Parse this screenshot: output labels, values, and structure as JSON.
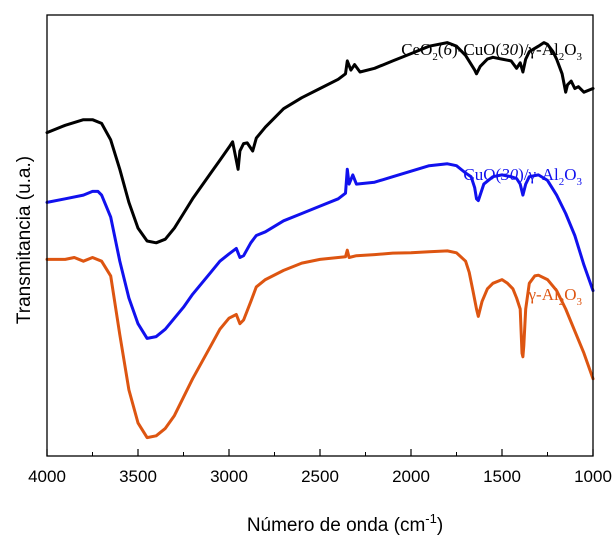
{
  "chart_data": {
    "type": "line",
    "title": "",
    "xlabel": "Número de onda (cm",
    "xlabel_sup": "-1",
    "xlabel_close": ")",
    "ylabel": "Transmitancia (u.a.)",
    "xlim": [
      4000,
      1000
    ],
    "x_reversed": true,
    "xticks": [
      "4000",
      "3500",
      "3000",
      "2500",
      "2000",
      "1500",
      "1000"
    ],
    "grid": false,
    "legend": "none",
    "series": [
      {
        "name": "CeO2(6)-CuO(30)/γ-Al2O3",
        "color": "#000000",
        "points": [
          [
            4000,
            0.7
          ],
          [
            3900,
            0.72
          ],
          [
            3800,
            0.735
          ],
          [
            3750,
            0.735
          ],
          [
            3700,
            0.725
          ],
          [
            3650,
            0.68
          ],
          [
            3600,
            0.6
          ],
          [
            3550,
            0.51
          ],
          [
            3500,
            0.44
          ],
          [
            3450,
            0.405
          ],
          [
            3400,
            0.4
          ],
          [
            3350,
            0.41
          ],
          [
            3300,
            0.44
          ],
          [
            3250,
            0.48
          ],
          [
            3200,
            0.52
          ],
          [
            3100,
            0.59
          ],
          [
            3050,
            0.625
          ],
          [
            3000,
            0.66
          ],
          [
            2980,
            0.675
          ],
          [
            2960,
            0.625
          ],
          [
            2950,
            0.6
          ],
          [
            2940,
            0.65
          ],
          [
            2920,
            0.67
          ],
          [
            2900,
            0.672
          ],
          [
            2870,
            0.65
          ],
          [
            2850,
            0.685
          ],
          [
            2800,
            0.715
          ],
          [
            2700,
            0.765
          ],
          [
            2600,
            0.795
          ],
          [
            2500,
            0.82
          ],
          [
            2400,
            0.845
          ],
          [
            2360,
            0.86
          ],
          [
            2350,
            0.895
          ],
          [
            2330,
            0.87
          ],
          [
            2310,
            0.885
          ],
          [
            2280,
            0.865
          ],
          [
            2200,
            0.875
          ],
          [
            2100,
            0.895
          ],
          [
            2000,
            0.915
          ],
          [
            1900,
            0.935
          ],
          [
            1800,
            0.945
          ],
          [
            1750,
            0.935
          ],
          [
            1700,
            0.91
          ],
          [
            1650,
            0.87
          ],
          [
            1640,
            0.86
          ],
          [
            1620,
            0.88
          ],
          [
            1580,
            0.9
          ],
          [
            1550,
            0.905
          ],
          [
            1500,
            0.9
          ],
          [
            1450,
            0.895
          ],
          [
            1420,
            0.875
          ],
          [
            1400,
            0.89
          ],
          [
            1385,
            0.865
          ],
          [
            1370,
            0.9
          ],
          [
            1350,
            0.92
          ],
          [
            1300,
            0.935
          ],
          [
            1270,
            0.945
          ],
          [
            1250,
            0.94
          ],
          [
            1220,
            0.92
          ],
          [
            1200,
            0.9
          ],
          [
            1170,
            0.86
          ],
          [
            1150,
            0.81
          ],
          [
            1140,
            0.83
          ],
          [
            1120,
            0.84
          ],
          [
            1100,
            0.82
          ],
          [
            1080,
            0.825
          ],
          [
            1050,
            0.81
          ],
          [
            1000,
            0.82
          ]
        ]
      },
      {
        "name": "CuO(30)/γ-Al2O3",
        "color": "#1111ee",
        "points": [
          [
            4000,
            0.51
          ],
          [
            3900,
            0.52
          ],
          [
            3800,
            0.53
          ],
          [
            3750,
            0.54
          ],
          [
            3720,
            0.54
          ],
          [
            3700,
            0.53
          ],
          [
            3650,
            0.47
          ],
          [
            3600,
            0.35
          ],
          [
            3550,
            0.25
          ],
          [
            3500,
            0.18
          ],
          [
            3450,
            0.14
          ],
          [
            3400,
            0.145
          ],
          [
            3350,
            0.165
          ],
          [
            3300,
            0.195
          ],
          [
            3250,
            0.225
          ],
          [
            3200,
            0.26
          ],
          [
            3100,
            0.32
          ],
          [
            3050,
            0.35
          ],
          [
            3000,
            0.37
          ],
          [
            2960,
            0.385
          ],
          [
            2940,
            0.36
          ],
          [
            2920,
            0.365
          ],
          [
            2880,
            0.4
          ],
          [
            2850,
            0.42
          ],
          [
            2800,
            0.43
          ],
          [
            2700,
            0.46
          ],
          [
            2600,
            0.48
          ],
          [
            2500,
            0.5
          ],
          [
            2400,
            0.52
          ],
          [
            2360,
            0.535
          ],
          [
            2350,
            0.6
          ],
          [
            2340,
            0.56
          ],
          [
            2320,
            0.585
          ],
          [
            2300,
            0.56
          ],
          [
            2200,
            0.565
          ],
          [
            2100,
            0.58
          ],
          [
            2000,
            0.595
          ],
          [
            1900,
            0.61
          ],
          [
            1800,
            0.615
          ],
          [
            1750,
            0.61
          ],
          [
            1700,
            0.59
          ],
          [
            1670,
            0.58
          ],
          [
            1650,
            0.55
          ],
          [
            1640,
            0.52
          ],
          [
            1630,
            0.515
          ],
          [
            1600,
            0.56
          ],
          [
            1550,
            0.58
          ],
          [
            1500,
            0.585
          ],
          [
            1450,
            0.58
          ],
          [
            1420,
            0.575
          ],
          [
            1400,
            0.56
          ],
          [
            1385,
            0.53
          ],
          [
            1370,
            0.56
          ],
          [
            1350,
            0.58
          ],
          [
            1300,
            0.585
          ],
          [
            1250,
            0.57
          ],
          [
            1200,
            0.53
          ],
          [
            1150,
            0.48
          ],
          [
            1100,
            0.42
          ],
          [
            1050,
            0.34
          ],
          [
            1000,
            0.27
          ]
        ]
      },
      {
        "name": "γ-Al2O3",
        "color": "#dd5511",
        "points": [
          [
            4000,
            0.355
          ],
          [
            3900,
            0.355
          ],
          [
            3850,
            0.36
          ],
          [
            3800,
            0.35
          ],
          [
            3750,
            0.36
          ],
          [
            3700,
            0.35
          ],
          [
            3650,
            0.31
          ],
          [
            3600,
            0.15
          ],
          [
            3550,
            0.0
          ],
          [
            3500,
            -0.09
          ],
          [
            3450,
            -0.13
          ],
          [
            3400,
            -0.125
          ],
          [
            3350,
            -0.105
          ],
          [
            3300,
            -0.07
          ],
          [
            3250,
            -0.02
          ],
          [
            3200,
            0.03
          ],
          [
            3100,
            0.12
          ],
          [
            3050,
            0.165
          ],
          [
            3000,
            0.195
          ],
          [
            2960,
            0.205
          ],
          [
            2940,
            0.18
          ],
          [
            2920,
            0.19
          ],
          [
            2880,
            0.24
          ],
          [
            2850,
            0.28
          ],
          [
            2800,
            0.3
          ],
          [
            2700,
            0.325
          ],
          [
            2600,
            0.345
          ],
          [
            2500,
            0.355
          ],
          [
            2400,
            0.36
          ],
          [
            2360,
            0.362
          ],
          [
            2350,
            0.38
          ],
          [
            2340,
            0.36
          ],
          [
            2300,
            0.365
          ],
          [
            2200,
            0.368
          ],
          [
            2100,
            0.372
          ],
          [
            2000,
            0.373
          ],
          [
            1900,
            0.376
          ],
          [
            1800,
            0.378
          ],
          [
            1750,
            0.373
          ],
          [
            1700,
            0.35
          ],
          [
            1680,
            0.32
          ],
          [
            1660,
            0.27
          ],
          [
            1640,
            0.22
          ],
          [
            1630,
            0.2
          ],
          [
            1610,
            0.24
          ],
          [
            1580,
            0.275
          ],
          [
            1550,
            0.29
          ],
          [
            1500,
            0.3
          ],
          [
            1470,
            0.29
          ],
          [
            1440,
            0.275
          ],
          [
            1420,
            0.25
          ],
          [
            1400,
            0.22
          ],
          [
            1390,
            0.1
          ],
          [
            1385,
            0.09
          ],
          [
            1380,
            0.12
          ],
          [
            1370,
            0.22
          ],
          [
            1350,
            0.29
          ],
          [
            1320,
            0.31
          ],
          [
            1300,
            0.312
          ],
          [
            1250,
            0.3
          ],
          [
            1200,
            0.27
          ],
          [
            1150,
            0.22
          ],
          [
            1100,
            0.16
          ],
          [
            1050,
            0.1
          ],
          [
            1000,
            0.03
          ]
        ]
      }
    ]
  },
  "annotations": {
    "black": {
      "pre": "CeO",
      "s1": "2",
      "p1": "(",
      "i1": "6",
      "p2": ")-CuO(",
      "i2": "30",
      "p3": ")/γ-Al",
      "s2": "2",
      "p4": "O",
      "s3": "3"
    },
    "blue": {
      "pre": "CuO(",
      "i1": "30",
      "p1": ")/γ-Al",
      "s1": "2",
      "p2": "O",
      "s2": "3"
    },
    "orange": {
      "pre": "γ-Al",
      "s1": "2",
      "p1": "O",
      "s2": "3"
    }
  }
}
